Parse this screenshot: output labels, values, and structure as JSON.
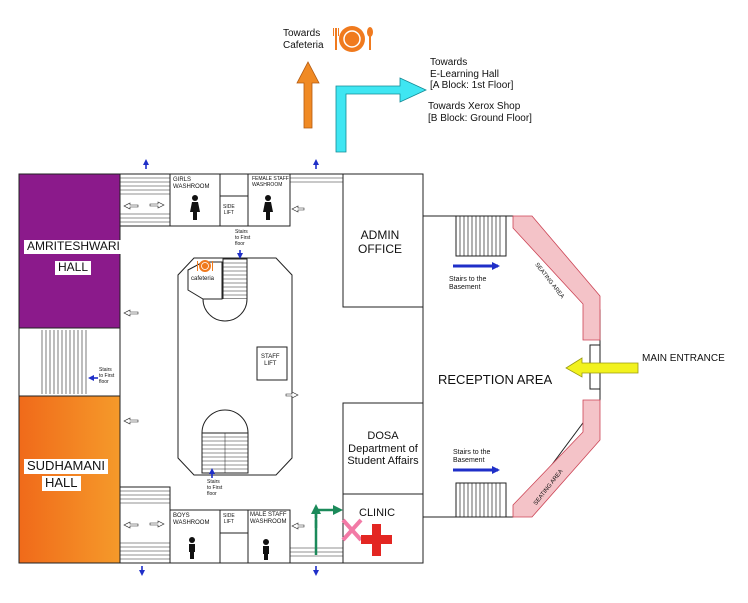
{
  "cafeteria_direction": "Towards\nCafeteria",
  "elearning_direction": "Towards\nE-Learning Hall\n[A Block: 1st Floor]",
  "xerox_direction": "Towards Xerox Shop\n[B Block: Ground Floor]",
  "rooms": {
    "amriteshwari_hall_line1": "AMRITESHWARI",
    "amriteshwari_hall_line2": "HALL",
    "sudhamani_hall_line1": "SUDHAMANI",
    "sudhamani_hall_line2": "HALL",
    "girls_washroom": "GIRLS\nWASHROOM",
    "female_staff_washroom": "FEMALE STAFF\nWASHROOM",
    "side_lift_top": "SIDE\nLIFT",
    "side_lift_bottom": "SIDE\nLIFT",
    "boys_washroom": "BOYS\nWASHROOM",
    "male_staff_washroom": "MALE STAFF\nWASHROOM",
    "staff_lift": "STAFF\nLIFT",
    "cafeteria": "cafeteria",
    "admin_office": "ADMIN\nOFFICE",
    "dosa": "DOSA\nDepartment of\nStudent Affairs",
    "clinic": "CLINIC",
    "reception_area": "RECEPTION AREA",
    "seating_area_top": "SEATING AREA",
    "seating_area_bottom": "SEATING AREA"
  },
  "stairs_labels": {
    "stairs_first_floor_top": "Stairs\nto First\nfloor",
    "stairs_first_floor_left": "Stairs\nto First\nfloor",
    "stairs_first_floor_bottom": "Stairs\nto First\nfloor",
    "stairs_basement_top": "Stairs to the\nBasement",
    "stairs_basement_bottom": "Stairs to the\nBasement"
  },
  "main_entrance": "MAIN ENTRANCE",
  "colors": {
    "amriteshwari_purple": "#8B1A8B",
    "sudhamani_orange": "#F07A1E",
    "orange_arrow": "#F08A24",
    "cyan_arrow": "#3FE6F2",
    "yellow_arrow": "#F2F21E",
    "blue_arrow": "#1F2FC8",
    "green_arrow": "#1B8A5A",
    "seating_pink": "#F4C3C8",
    "clinic_pink": "#F27AA6",
    "clinic_red": "#E32622",
    "cafeteria_orange": "#F07A1E"
  },
  "icons": [
    "cafeteria-plate-icon",
    "female-washroom-icon",
    "male-washroom-icon",
    "clinic-cross-icon",
    "direction-arrow-icon"
  ]
}
